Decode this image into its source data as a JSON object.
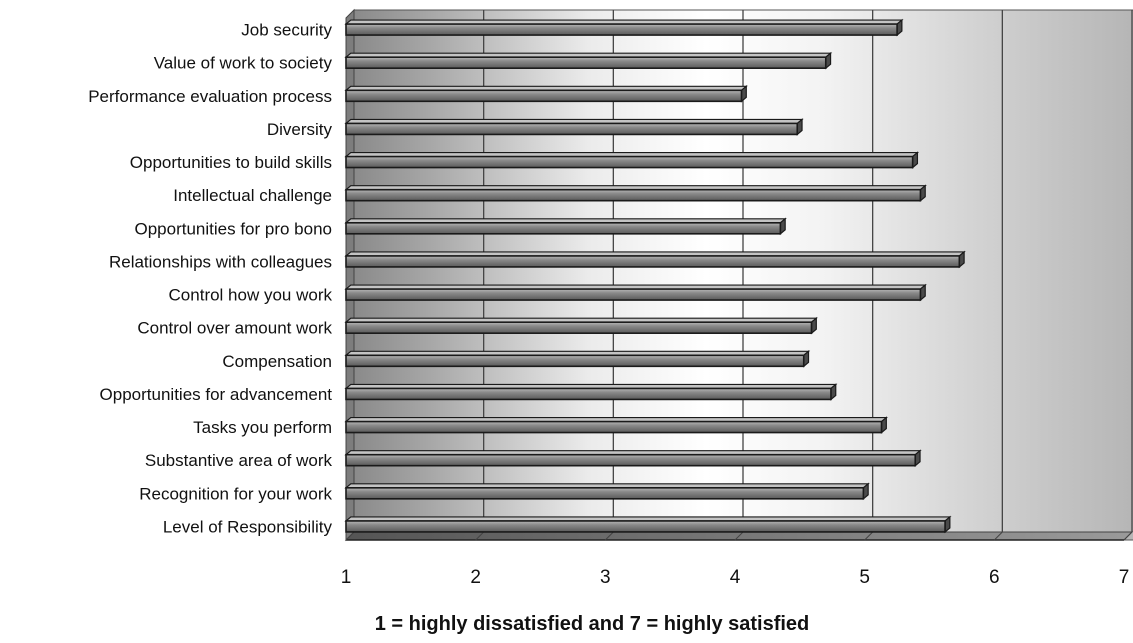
{
  "chart_data": {
    "type": "bar",
    "orientation": "horizontal",
    "categories": [
      "Job security",
      "Value of work to society",
      "Performance evaluation process",
      "Diversity",
      "Opportunities to build skills",
      "Intellectual challenge",
      "Opportunities for pro bono",
      "Relationships with colleagues",
      "Control how you work",
      "Control over amount work",
      "Compensation",
      "Opportunities for advancement",
      "Tasks you perform",
      "Substantive area of work",
      "Recognition for your work",
      "Level of Responsibility"
    ],
    "values": [
      5.25,
      4.7,
      4.05,
      4.48,
      5.37,
      5.43,
      4.35,
      5.73,
      5.43,
      4.59,
      4.53,
      4.74,
      5.13,
      5.39,
      4.99,
      5.62
    ],
    "xlim": [
      1,
      7
    ],
    "xticks": [
      "1",
      "2",
      "3",
      "4",
      "5",
      "6",
      "7"
    ],
    "xlabel": "1 = highly dissatisfied and 7 = highly satisfied",
    "title": "",
    "ylabel": "",
    "grid": true,
    "colors": {
      "bar_fill": "#7a7a7a",
      "bar_highlight": "#b0b0b0",
      "bar_edge": "#1a1a1a",
      "grid": "#444444",
      "background_light": "#ffffff",
      "background_dark": "#8c8c8c"
    }
  }
}
